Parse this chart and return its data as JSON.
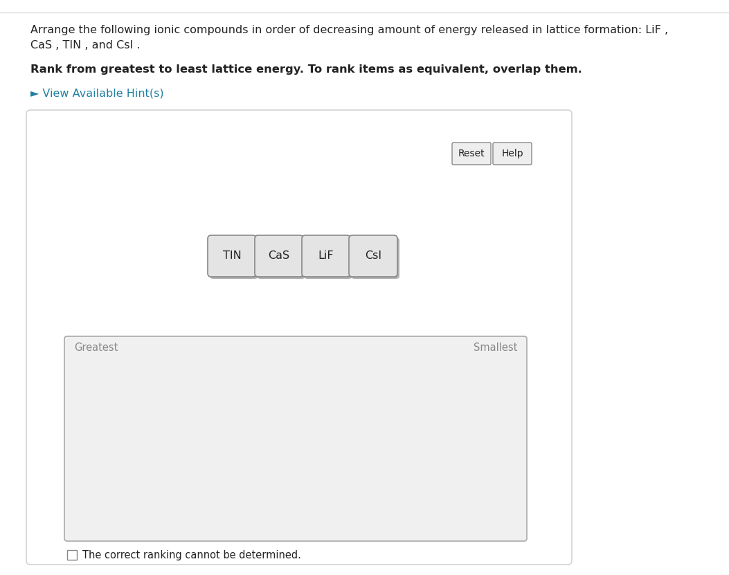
{
  "bg_color": "#ffffff",
  "title_line1": "Arrange the following ionic compounds in order of decreasing amount of energy released in lattice formation: LiF ,",
  "title_line2": "CaS , TIN , and CsI .",
  "subtitle": "Rank from greatest to least lattice energy. To rank items as equivalent, overlap them.",
  "hint_text": "► View Available Hint(s)",
  "hint_color": "#2080a0",
  "buttons": [
    "TIN",
    "CaS",
    "LiF",
    "CsI"
  ],
  "reset_label": "Reset",
  "help_label": "Help",
  "greatest_label": "Greatest",
  "smallest_label": "Smallest",
  "checkbox_text": "The correct ranking cannot be determined.",
  "text_color": "#222222",
  "gray_text": "#888888",
  "button_face": "#e4e4e4",
  "button_border": "#888888",
  "box_border": "#aaaaaa",
  "outer_box_fill": "#ffffff",
  "inner_box_fill": "#f0f0f0",
  "font_size_title": 11.5,
  "font_size_subtitle": 11.8,
  "font_size_btn": 11.5,
  "font_size_label": 10.5,
  "font_size_hint": 11.5,
  "fig_w": 10.53,
  "fig_h": 8.31,
  "dpi": 100
}
